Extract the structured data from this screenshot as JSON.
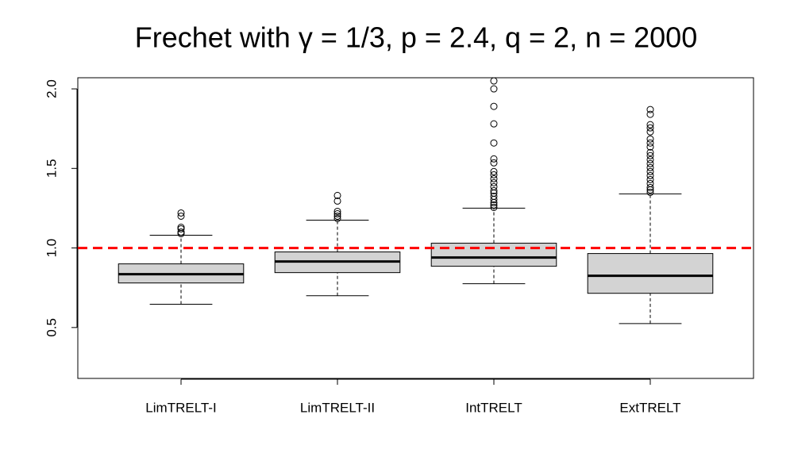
{
  "chart_data": {
    "type": "box",
    "title": "Frechet with γ = 1/3, p = 2.4, q = 2, n = 2000",
    "categories": [
      "LimTRELT-I",
      "LimTRELT-II",
      "IntTRELT",
      "ExtTRELT"
    ],
    "boxes": [
      {
        "low": 0.646,
        "q1": 0.78,
        "median": 0.835,
        "q3": 0.9,
        "high": 1.08,
        "outliers": [
          1.22,
          1.2,
          1.13,
          1.12,
          1.1,
          1.09
        ]
      },
      {
        "low": 0.7,
        "q1": 0.845,
        "median": 0.915,
        "q3": 0.975,
        "high": 1.175,
        "outliers": [
          1.33,
          1.295,
          1.23,
          1.215,
          1.2,
          1.185
        ]
      },
      {
        "low": 0.775,
        "q1": 0.885,
        "median": 0.94,
        "q3": 1.03,
        "high": 1.25,
        "outliers": [
          2.05,
          2.0,
          1.89,
          1.78,
          1.66,
          1.56,
          1.535,
          1.48,
          1.46,
          1.435,
          1.41,
          1.385,
          1.36,
          1.345,
          1.325,
          1.305,
          1.285,
          1.27,
          1.255
        ]
      },
      {
        "low": 0.525,
        "q1": 0.715,
        "median": 0.825,
        "q3": 0.965,
        "high": 1.34,
        "outliers": [
          1.87,
          1.84,
          1.775,
          1.755,
          1.73,
          1.685,
          1.66,
          1.635,
          1.6,
          1.58,
          1.555,
          1.53,
          1.505,
          1.48,
          1.455,
          1.43,
          1.405,
          1.38,
          1.365,
          1.35
        ]
      }
    ],
    "color": "#d3d3d3",
    "reference_line": {
      "value": 1,
      "color": "#ff0000"
    },
    "ylim": [
      0.18,
      2.07
    ],
    "yticks": [
      0.5,
      {
        "value": 1,
        "label": "1.0"
      },
      1.5,
      {
        "value": 2,
        "label": "2.0"
      }
    ]
  }
}
